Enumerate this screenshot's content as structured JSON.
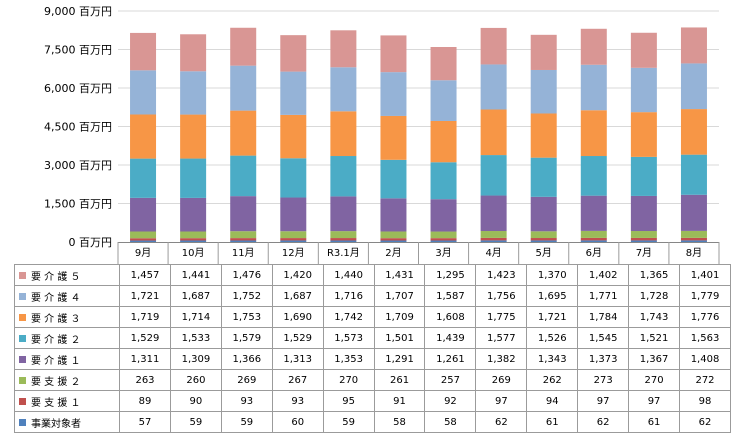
{
  "chart_data": {
    "type": "bar",
    "stacked": true,
    "title": "",
    "xlabel": "",
    "ylabel": "",
    "ylim": [
      0,
      9000
    ],
    "y_ticks": [
      {
        "value": 0,
        "label": "0 百万円"
      },
      {
        "value": 1500,
        "label": "1,500 百万円"
      },
      {
        "value": 3000,
        "label": "3,000 百万円"
      },
      {
        "value": 4500,
        "label": "4,500 百万円"
      },
      {
        "value": 6000,
        "label": "6,000 百万円"
      },
      {
        "value": 7500,
        "label": "7,500 百万円"
      },
      {
        "value": 9000,
        "label": "9,000 百万円"
      }
    ],
    "grid": true,
    "legend_position": "data-table",
    "categories": [
      "9月",
      "10月",
      "11月",
      "12月",
      "R3.1月",
      "2月",
      "3月",
      "4月",
      "5月",
      "6月",
      "7月",
      "8月"
    ],
    "series": [
      {
        "name": "事業対象者",
        "color": "#4f81bd",
        "values": [
          57,
          59,
          59,
          60,
          59,
          58,
          58,
          62,
          61,
          62,
          61,
          62
        ],
        "labels": [
          "57",
          "59",
          "59",
          "60",
          "59",
          "58",
          "58",
          "62",
          "61",
          "62",
          "61",
          "62"
        ]
      },
      {
        "name": "要 支 援 １",
        "color": "#c0504d",
        "values": [
          89,
          90,
          93,
          93,
          95,
          91,
          92,
          97,
          94,
          97,
          97,
          98
        ],
        "labels": [
          "89",
          "90",
          "93",
          "93",
          "95",
          "91",
          "92",
          "97",
          "94",
          "97",
          "97",
          "98"
        ]
      },
      {
        "name": "要 支 援 ２",
        "color": "#9bbb59",
        "values": [
          263,
          260,
          269,
          267,
          270,
          261,
          257,
          269,
          262,
          273,
          270,
          272
        ],
        "labels": [
          "263",
          "260",
          "269",
          "267",
          "270",
          "261",
          "257",
          "269",
          "262",
          "273",
          "270",
          "272"
        ]
      },
      {
        "name": "要 介 護 １",
        "color": "#8064a2",
        "values": [
          1311,
          1309,
          1366,
          1313,
          1353,
          1291,
          1261,
          1382,
          1343,
          1373,
          1367,
          1408
        ],
        "labels": [
          "1,311",
          "1,309",
          "1,366",
          "1,313",
          "1,353",
          "1,291",
          "1,261",
          "1,382",
          "1,343",
          "1,373",
          "1,367",
          "1,408"
        ]
      },
      {
        "name": "要 介 護 ２",
        "color": "#4bacc6",
        "values": [
          1529,
          1533,
          1579,
          1529,
          1573,
          1501,
          1439,
          1577,
          1526,
          1545,
          1521,
          1563
        ],
        "labels": [
          "1,529",
          "1,533",
          "1,579",
          "1,529",
          "1,573",
          "1,501",
          "1,439",
          "1,577",
          "1,526",
          "1,545",
          "1,521",
          "1,563"
        ]
      },
      {
        "name": "要 介 護 ３",
        "color": "#f79646",
        "values": [
          1719,
          1714,
          1753,
          1690,
          1742,
          1709,
          1608,
          1775,
          1721,
          1784,
          1743,
          1776
        ],
        "labels": [
          "1,719",
          "1,714",
          "1,753",
          "1,690",
          "1,742",
          "1,709",
          "1,608",
          "1,775",
          "1,721",
          "1,784",
          "1,743",
          "1,776"
        ]
      },
      {
        "name": "要 介 護 ４",
        "color": "#95b3d7",
        "values": [
          1721,
          1687,
          1752,
          1687,
          1716,
          1707,
          1587,
          1756,
          1695,
          1771,
          1728,
          1779
        ],
        "labels": [
          "1,721",
          "1,687",
          "1,752",
          "1,687",
          "1,716",
          "1,707",
          "1,587",
          "1,756",
          "1,695",
          "1,771",
          "1,728",
          "1,779"
        ]
      },
      {
        "name": "要 介 護 ５",
        "color": "#d99694",
        "values": [
          1457,
          1441,
          1476,
          1420,
          1440,
          1431,
          1295,
          1423,
          1370,
          1402,
          1365,
          1401
        ],
        "labels": [
          "1,457",
          "1,441",
          "1,476",
          "1,420",
          "1,440",
          "1,431",
          "1,295",
          "1,423",
          "1,370",
          "1,402",
          "1,365",
          "1,401"
        ]
      }
    ],
    "table_row_order": [
      7,
      6,
      5,
      4,
      3,
      2,
      1,
      0
    ]
  }
}
